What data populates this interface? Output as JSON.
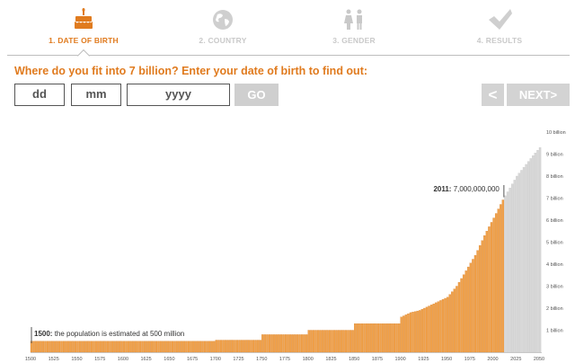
{
  "colors": {
    "accent": "#e07b1f",
    "bar_fill": "#f0a14a",
    "bar_stroke": "#d9822b",
    "projection_bar": "#d8d8d8",
    "inactive": "#c9c9c9"
  },
  "steps": [
    {
      "label": "1. DATE OF BIRTH",
      "icon": "birthday-cake-icon",
      "active": true
    },
    {
      "label": "2. COUNTRY",
      "icon": "globe-icon",
      "active": false
    },
    {
      "label": "3. GENDER",
      "icon": "gender-icon",
      "active": false
    },
    {
      "label": "4. RESULTS",
      "icon": "checkmark-icon",
      "active": false
    }
  ],
  "question": "Where do you fit into 7 billion? Enter your date of birth to find out:",
  "form": {
    "day_placeholder": "dd",
    "month_placeholder": "mm",
    "year_placeholder": "yyyy",
    "go_label": "GO"
  },
  "nav": {
    "prev_label": "<",
    "next_label": "NEXT>"
  },
  "chart_data": {
    "type": "bar",
    "title": "",
    "xlabel": "",
    "ylabel": "",
    "x_ticks": [
      "1500",
      "1525",
      "1550",
      "1575",
      "1600",
      "1625",
      "1650",
      "1675",
      "1700",
      "1725",
      "1750",
      "1775",
      "1800",
      "1825",
      "1850",
      "1875",
      "1900",
      "1925",
      "1950",
      "1975",
      "2000",
      "2025",
      "2050"
    ],
    "y_tick_labels": [
      "1 billion",
      "2 billion",
      "3 billion",
      "4 billion",
      "5 billion",
      "6 billion",
      "7 billion",
      "8 billion",
      "9 billion",
      "10 billion"
    ],
    "ylim": [
      0,
      10000000000
    ],
    "grid": false,
    "series": [
      {
        "values_billion": [
          {
            "year": 1500,
            "pop": 0.5
          },
          {
            "year": 1600,
            "pop": 0.5
          },
          {
            "year": 1700,
            "pop": 0.55
          },
          {
            "year": 1750,
            "pop": 0.8
          },
          {
            "year": 1800,
            "pop": 1.0
          },
          {
            "year": 1850,
            "pop": 1.3
          },
          {
            "year": 1900,
            "pop": 1.6
          },
          {
            "year": 1910,
            "pop": 1.8
          },
          {
            "year": 1920,
            "pop": 1.9
          },
          {
            "year": 1930,
            "pop": 2.1
          },
          {
            "year": 1940,
            "pop": 2.3
          },
          {
            "year": 1950,
            "pop": 2.5
          },
          {
            "year": 1960,
            "pop": 3.0
          },
          {
            "year": 1970,
            "pop": 3.7
          },
          {
            "year": 1980,
            "pop": 4.4
          },
          {
            "year": 1990,
            "pop": 5.3
          },
          {
            "year": 2000,
            "pop": 6.1
          },
          {
            "year": 2011,
            "pop": 7.0
          }
        ]
      },
      {
        "values_billion": [
          {
            "year": 2011,
            "pop": 7.0
          },
          {
            "year": 2025,
            "pop": 8.0
          },
          {
            "year": 2040,
            "pop": 8.8
          },
          {
            "year": 2050,
            "pop": 9.3
          }
        ]
      }
    ],
    "annotations": [
      {
        "year": 1500,
        "label_bold": "1500:",
        "label": "the population is estimated at 500 million"
      },
      {
        "year": 2011,
        "label_bold": "2011:",
        "label": "7,000,000,000"
      }
    ]
  }
}
